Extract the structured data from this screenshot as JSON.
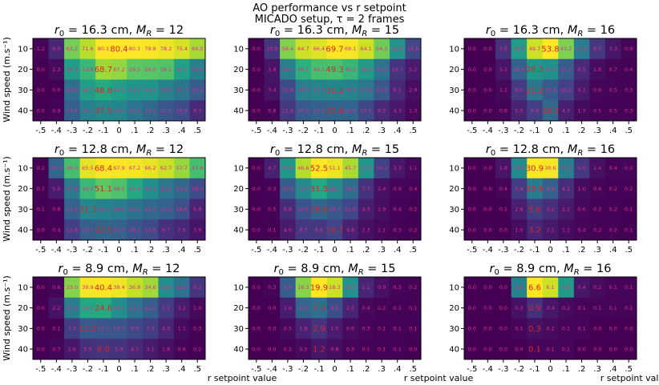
{
  "suptitle": [
    "AO performance vs r setpoint",
    "MICADO setup, τ = 2 frames"
  ],
  "ylabel": "Wind speed (m.s⁻¹)",
  "xlabel": "r setpoint value",
  "colors": {
    "peak_text": "#d62728",
    "cell_text": "#e7298a",
    "frame": "#000000"
  },
  "chart_data": {
    "type": "heatmap",
    "x_categories": [
      "-.5",
      "-.4",
      "-.3",
      "-.2",
      "-.1",
      "0",
      ".1",
      ".2",
      ".3",
      ".4",
      ".5"
    ],
    "y_categories": [
      "10",
      "20",
      "30",
      "40"
    ],
    "panels": [
      {
        "title": "r₀ = 16.3 cm, M_R = 12",
        "r0": "16.3 cm",
        "MR": "12",
        "vmax": 80.4,
        "values": [
          [
            1.2,
            9.0,
            63.2,
            71.6,
            80.1,
            80.4,
            80.1,
            79.8,
            78.2,
            75.4,
            69.5
          ],
          [
            0.0,
            2.3,
            44.4,
            53.6,
            68.7,
            67.2,
            59.5,
            59.0,
            58.1,
            45.1,
            34.6
          ],
          [
            0.0,
            0.0,
            28.8,
            44.3,
            48.8,
            44.3,
            41.2,
            41.2,
            35.6,
            31.3,
            23.4
          ],
          [
            0.0,
            0.9,
            24.5,
            35.1,
            37.5,
            36.5,
            31.6,
            27.2,
            22.1,
            18.4,
            9.7
          ]
        ],
        "peaks": [
          [
            0,
            5
          ],
          [
            1,
            4
          ],
          [
            2,
            4
          ],
          [
            3,
            4
          ]
        ]
      },
      {
        "title": "r₀ = 16.3 cm, M_R = 15",
        "r0": "16.3 cm",
        "MR": "15",
        "vmax": 69.7,
        "values": [
          [
            0.0,
            10.9,
            56.4,
            64.7,
            66.4,
            69.7,
            69.1,
            64.1,
            54.3,
            35.9,
            15.6
          ],
          [
            0.0,
            3.8,
            29.7,
            44.1,
            49.1,
            49.3,
            46.2,
            38.0,
            26.9,
            10.7,
            5.2
          ],
          [
            0.0,
            3.4,
            15.8,
            29.7,
            31.3,
            31.3,
            30.9,
            27.8,
            19.4,
            8.1,
            2.9
          ],
          [
            0.0,
            0.8,
            11.6,
            20.0,
            21.5,
            22.6,
            22.6,
            15.5,
            8.3,
            4.7,
            1.3
          ]
        ],
        "peaks": [
          [
            0,
            5
          ],
          [
            1,
            5
          ],
          [
            2,
            5
          ],
          [
            3,
            5
          ]
        ]
      },
      {
        "title": "r₀ = 16.3 cm, M_R = 16",
        "r0": "16.3 cm",
        "MR": "16",
        "vmax": 53.8,
        "values": [
          [
            0.0,
            0.0,
            7.6,
            29.8,
            49.7,
            53.8,
            43.2,
            22.6,
            8.7,
            3.3,
            0.9
          ],
          [
            0.0,
            0.0,
            3.1,
            16.8,
            28.2,
            27.0,
            15.7,
            6.5,
            1.8,
            0.7,
            0.4
          ],
          [
            0.0,
            0.0,
            1.2,
            9.0,
            21.2,
            15.5,
            10.3,
            4.1,
            0.8,
            0.5,
            0.3
          ],
          [
            0.0,
            0.0,
            0.6,
            5.0,
            9.9,
            18.2,
            4.7,
            1.7,
            0.5,
            0.5,
            0.3
          ]
        ],
        "peaks": [
          [
            0,
            5
          ],
          [
            1,
            4
          ],
          [
            2,
            4
          ],
          [
            3,
            5
          ]
        ]
      },
      {
        "title": "r₀ = 12.8 cm, M_R = 12",
        "r0": "12.8 cm",
        "MR": "12",
        "vmax": 68.4,
        "values": [
          [
            0.2,
            22.3,
            48.0,
            65.5,
            68.4,
            67.9,
            67.2,
            66.2,
            62.7,
            57.7,
            47.8
          ],
          [
            0.7,
            5.5,
            27.5,
            45.9,
            51.1,
            49.1,
            41.4,
            34.1,
            27.6,
            23.3,
            16.0
          ],
          [
            0.1,
            0.8,
            21.2,
            31.3,
            30.1,
            28.6,
            26.2,
            23.3,
            21.0,
            16.6,
            6.9
          ],
          [
            0.0,
            0.4,
            12.8,
            20.7,
            22.5,
            21.5,
            18.1,
            15.8,
            9.7,
            7.6,
            3.9
          ]
        ],
        "peaks": [
          [
            0,
            4
          ],
          [
            1,
            4
          ],
          [
            2,
            3
          ],
          [
            3,
            4
          ]
        ]
      },
      {
        "title": "r₀ = 12.8 cm, M_R = 15",
        "r0": "12.8 cm",
        "MR": "15",
        "vmax": 52.5,
        "values": [
          [
            0.0,
            4.7,
            27.9,
            46.6,
            52.5,
            51.1,
            45.7,
            27.5,
            10.2,
            3.3,
            1.1
          ],
          [
            0.0,
            0.3,
            15.3,
            24.7,
            31.5,
            25.2,
            18.9,
            7.7,
            2.4,
            0.9,
            0.4
          ],
          [
            0.0,
            0.5,
            6.8,
            13.5,
            16.8,
            14.7,
            11.0,
            4.3,
            1.9,
            0.4,
            0.2
          ],
          [
            0.0,
            0.1,
            4.0,
            8.7,
            8.6,
            10.7,
            4.8,
            2.3,
            1.1,
            0.3,
            0.2
          ]
        ],
        "peaks": [
          [
            0,
            4
          ],
          [
            1,
            4
          ],
          [
            2,
            4
          ],
          [
            3,
            5
          ]
        ]
      },
      {
        "title": "r₀ = 12.8 cm, M_R = 16",
        "r0": "12.8 cm",
        "MR": "16",
        "vmax": 30.9,
        "values": [
          [
            0.0,
            0.0,
            1.8,
            14.6,
            30.9,
            30.6,
            13.2,
            5.0,
            1.4,
            0.4,
            0.5
          ],
          [
            0.0,
            0.0,
            0.4,
            5.4,
            12.9,
            9.6,
            4.1,
            1.0,
            0.4,
            0.2,
            0.2
          ],
          [
            0.0,
            0.0,
            0.1,
            2.6,
            5.6,
            4.2,
            2.2,
            0.6,
            0.2,
            0.2,
            0.1
          ],
          [
            0.0,
            0.0,
            0.0,
            1.0,
            3.2,
            2.1,
            1.1,
            0.4,
            0.2,
            0.2,
            0.1
          ]
        ],
        "peaks": [
          [
            0,
            4
          ],
          [
            1,
            4
          ],
          [
            2,
            4
          ],
          [
            3,
            4
          ]
        ]
      },
      {
        "title": "r₀ = 8.9 cm, M_R = 12",
        "r0": "8.9 cm",
        "MR": "12",
        "vmax": 40.4,
        "values": [
          [
            0.0,
            0.6,
            33.0,
            39.9,
            40.4,
            39.4,
            36.8,
            34.6,
            19.8,
            15.2,
            6.3
          ],
          [
            0.0,
            2.2,
            17.1,
            24.3,
            24.6,
            20.1,
            15.5,
            12.2,
            7.1,
            3.2,
            1.0
          ],
          [
            0.0,
            0.1,
            7.3,
            11.2,
            11.1,
            10.7,
            9.0,
            7.3,
            4.3,
            1.1,
            0.3
          ],
          [
            0.0,
            0.7,
            2.6,
            5.5,
            6.0,
            5.9,
            4.7,
            3.1,
            1.8,
            0.6,
            0.2
          ]
        ],
        "peaks": [
          [
            0,
            4
          ],
          [
            1,
            4
          ],
          [
            2,
            3
          ],
          [
            3,
            4
          ]
        ]
      },
      {
        "title": "r₀ = 8.9 cm, M_R = 15",
        "r0": "8.9 cm",
        "MR": "15",
        "vmax": 19.9,
        "values": [
          [
            0.0,
            0.3,
            5.9,
            16.3,
            19.9,
            18.3,
            10.0,
            2.1,
            0.9,
            0.3,
            0.2
          ],
          [
            0.0,
            0.0,
            1.6,
            6.5,
            7.3,
            4.9,
            2.0,
            0.4,
            0.2,
            0.1,
            0.1
          ],
          [
            0.0,
            0.0,
            0.5,
            1.9,
            2.9,
            1.5,
            0.6,
            0.3,
            0.1,
            0.1,
            0.1
          ],
          [
            0.0,
            0.0,
            0.2,
            0.5,
            1.2,
            0.8,
            0.3,
            0.1,
            0.1,
            0.1,
            0.0
          ]
        ],
        "peaks": [
          [
            0,
            4
          ],
          [
            1,
            4
          ],
          [
            2,
            4
          ],
          [
            3,
            4
          ]
        ]
      },
      {
        "title": "r₀ = 8.9 cm, M_R = 16",
        "r0": "8.9 cm",
        "MR": "16",
        "vmax": 6.6,
        "values": [
          [
            0.0,
            0.0,
            0.0,
            2.9,
            6.6,
            6.1,
            3.6,
            0.4,
            0.2,
            0.1,
            0.1
          ],
          [
            0.0,
            0.0,
            0.0,
            0.3,
            0.9,
            0.4,
            0.2,
            0.1,
            0.1,
            0.1,
            0.1
          ],
          [
            0.0,
            0.0,
            0.0,
            0.1,
            0.3,
            0.2,
            0.1,
            0.1,
            0.0,
            0.0,
            0.0
          ],
          [
            0.0,
            0.0,
            0.0,
            0.0,
            0.1,
            0.1,
            0.1,
            0.0,
            0.0,
            0.0,
            0.0
          ]
        ],
        "peaks": [
          [
            0,
            4
          ],
          [
            1,
            4
          ],
          [
            2,
            4
          ],
          [
            3,
            4
          ]
        ]
      }
    ]
  }
}
